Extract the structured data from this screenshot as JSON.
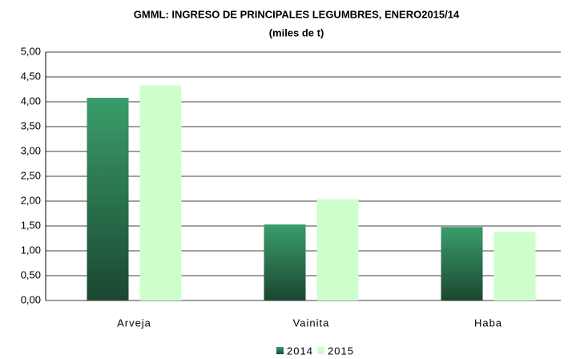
{
  "chart_data": {
    "type": "bar",
    "title": "GMML: INGRESO DE PRINCIPALES LEGUMBRES, ENERO2015/14",
    "subtitle": "(miles de t)",
    "categories": [
      "Arveja",
      "Vainita",
      "Haba"
    ],
    "series": [
      {
        "name": "2014",
        "color": "#3a9d6b",
        "gradient": true,
        "values": [
          4.08,
          1.53,
          1.48
        ]
      },
      {
        "name": "2015",
        "color": "#ccffcc",
        "gradient": false,
        "values": [
          4.33,
          2.04,
          1.38
        ]
      }
    ],
    "ylim": [
      0,
      5
    ],
    "yticks": [
      {
        "value": 0,
        "label": "0,00"
      },
      {
        "value": 0.5,
        "label": "0,50"
      },
      {
        "value": 1,
        "label": "1,00"
      },
      {
        "value": 1.5,
        "label": "1,50"
      },
      {
        "value": 2,
        "label": "2,00"
      },
      {
        "value": 2.5,
        "label": "2,50"
      },
      {
        "value": 3,
        "label": "3,00"
      },
      {
        "value": 3.5,
        "label": "3,50"
      },
      {
        "value": 4,
        "label": "4,00"
      },
      {
        "value": 4.5,
        "label": "4,50"
      },
      {
        "value": 5,
        "label": "5,00"
      }
    ],
    "grid": true,
    "legend": "bottom"
  }
}
